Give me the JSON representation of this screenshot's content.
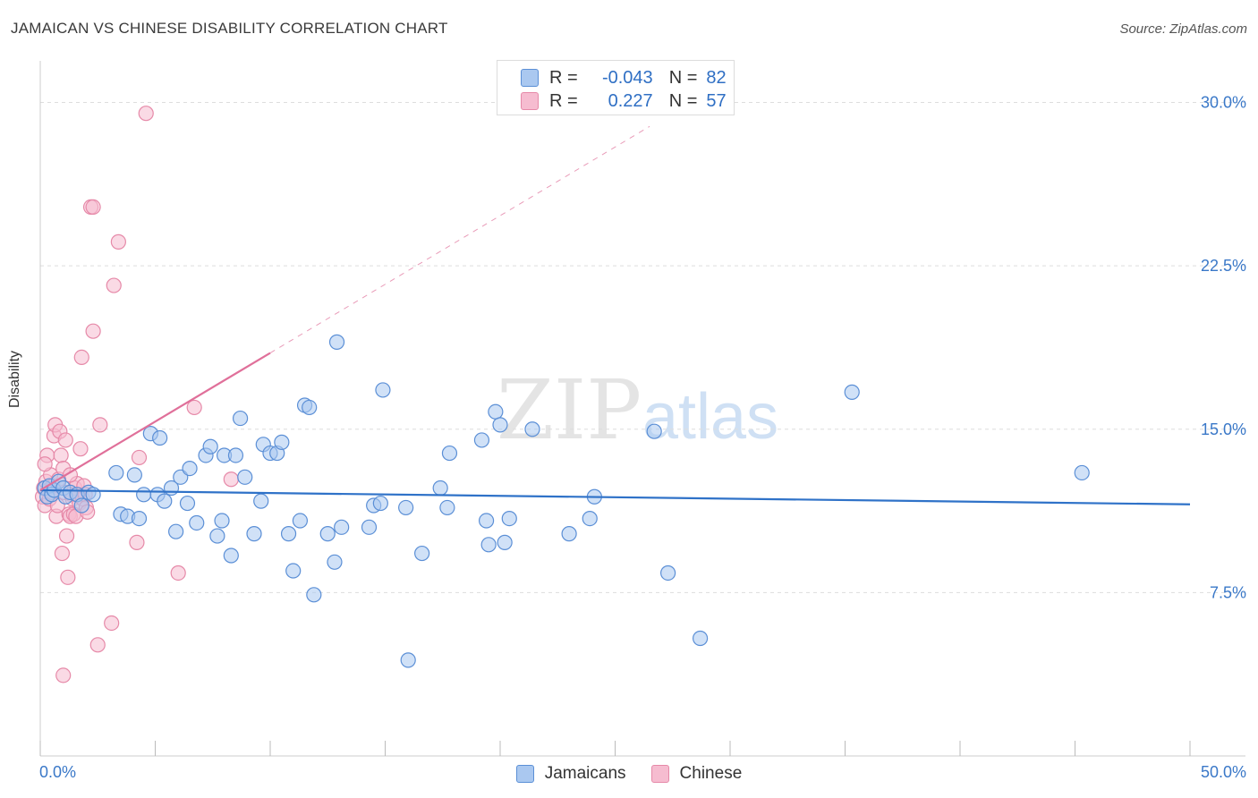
{
  "title": "JAMAICAN VS CHINESE DISABILITY CORRELATION CHART",
  "source": "Source: ZipAtlas.com",
  "watermark": {
    "zip": "ZIP",
    "atlas": "atlas"
  },
  "legend": {
    "rows": [
      {
        "r_label": "R =",
        "r_value": "-0.043",
        "n_label": "N =",
        "n_value": "82"
      },
      {
        "r_label": "R =",
        "r_value": "0.227",
        "n_label": "N =",
        "n_value": "57"
      }
    ]
  },
  "colors": {
    "blue_fill": "#aac8f0",
    "blue_stroke": "#5b8fd6",
    "blue_line": "#2f72c8",
    "pink_fill": "#f6bcd0",
    "pink_stroke": "#e689a8",
    "pink_line": "#e0709a",
    "tick_label": "#3a78c8",
    "grid": "#dddddd"
  },
  "chart_data": {
    "type": "scatter",
    "title": "JAMAICAN VS CHINESE DISABILITY CORRELATION CHART",
    "xlabel": "",
    "ylabel": "Disability",
    "xlim": [
      0,
      50
    ],
    "ylim": [
      0,
      31.5
    ],
    "x_tick_labels": [
      "0.0%",
      "50.0%"
    ],
    "y_ticks": [
      7.5,
      15.0,
      22.5,
      30.0
    ],
    "y_tick_labels": [
      "7.5%",
      "15.0%",
      "22.5%",
      "30.0%"
    ],
    "legend_placement": "bottom-center",
    "series": [
      {
        "name": "Jamaicans",
        "color": "#5b8fd6",
        "trend": {
          "x": [
            0,
            50
          ],
          "y": [
            12.2,
            11.55
          ],
          "style": "solid"
        },
        "points": [
          [
            0.2,
            12.3
          ],
          [
            0.3,
            11.9
          ],
          [
            0.4,
            12.4
          ],
          [
            0.5,
            12.0
          ],
          [
            0.6,
            12.2
          ],
          [
            0.8,
            12.6
          ],
          [
            1.0,
            12.3
          ],
          [
            1.1,
            11.9
          ],
          [
            1.3,
            12.1
          ],
          [
            1.6,
            12.0
          ],
          [
            1.8,
            11.5
          ],
          [
            2.1,
            12.1
          ],
          [
            2.3,
            12.0
          ],
          [
            3.3,
            13.0
          ],
          [
            3.5,
            11.1
          ],
          [
            3.8,
            11.0
          ],
          [
            4.1,
            12.9
          ],
          [
            4.3,
            10.9
          ],
          [
            4.5,
            12.0
          ],
          [
            4.8,
            14.8
          ],
          [
            5.1,
            12.0
          ],
          [
            5.2,
            14.6
          ],
          [
            5.4,
            11.7
          ],
          [
            5.7,
            12.3
          ],
          [
            5.9,
            10.3
          ],
          [
            6.1,
            12.8
          ],
          [
            6.4,
            11.6
          ],
          [
            6.5,
            13.2
          ],
          [
            6.8,
            10.7
          ],
          [
            7.2,
            13.8
          ],
          [
            7.4,
            14.2
          ],
          [
            7.7,
            10.1
          ],
          [
            7.9,
            10.8
          ],
          [
            8.0,
            13.8
          ],
          [
            8.3,
            9.2
          ],
          [
            8.5,
            13.8
          ],
          [
            8.7,
            15.5
          ],
          [
            8.9,
            12.8
          ],
          [
            9.3,
            10.2
          ],
          [
            9.6,
            11.7
          ],
          [
            9.7,
            14.3
          ],
          [
            10.0,
            13.9
          ],
          [
            10.3,
            13.9
          ],
          [
            10.5,
            14.4
          ],
          [
            10.8,
            10.2
          ],
          [
            11.0,
            8.5
          ],
          [
            11.3,
            10.8
          ],
          [
            11.5,
            16.1
          ],
          [
            11.7,
            16.0
          ],
          [
            11.9,
            7.4
          ],
          [
            12.5,
            10.2
          ],
          [
            12.8,
            8.9
          ],
          [
            12.9,
            19.0
          ],
          [
            13.1,
            10.5
          ],
          [
            14.3,
            10.5
          ],
          [
            14.5,
            11.5
          ],
          [
            14.8,
            11.6
          ],
          [
            14.9,
            16.8
          ],
          [
            15.9,
            11.4
          ],
          [
            16.0,
            4.4
          ],
          [
            16.6,
            9.3
          ],
          [
            17.4,
            12.3
          ],
          [
            17.7,
            11.4
          ],
          [
            17.8,
            13.9
          ],
          [
            19.2,
            14.5
          ],
          [
            19.4,
            10.8
          ],
          [
            19.5,
            9.7
          ],
          [
            19.8,
            15.8
          ],
          [
            20.0,
            15.2
          ],
          [
            20.2,
            9.8
          ],
          [
            20.4,
            10.9
          ],
          [
            21.4,
            15.0
          ],
          [
            23.0,
            10.2
          ],
          [
            23.9,
            10.9
          ],
          [
            24.1,
            11.9
          ],
          [
            26.7,
            14.9
          ],
          [
            27.3,
            8.4
          ],
          [
            28.7,
            5.4
          ],
          [
            35.3,
            16.7
          ],
          [
            45.3,
            13.0
          ]
        ]
      },
      {
        "name": "Chinese",
        "color": "#e689a8",
        "trend": {
          "x": [
            0,
            10
          ],
          "y": [
            12.2,
            18.5
          ],
          "style": "solid"
        },
        "trend_extension": {
          "x": [
            10,
            26.5
          ],
          "y": [
            18.5,
            28.9
          ],
          "style": "dashed"
        },
        "points": [
          [
            0.1,
            11.9
          ],
          [
            0.15,
            12.3
          ],
          [
            0.2,
            11.5
          ],
          [
            0.25,
            12.6
          ],
          [
            0.3,
            13.8
          ],
          [
            0.35,
            12.2
          ],
          [
            0.4,
            11.8
          ],
          [
            0.45,
            12.9
          ],
          [
            0.5,
            12.1
          ],
          [
            0.55,
            12.4
          ],
          [
            0.6,
            14.7
          ],
          [
            0.65,
            15.2
          ],
          [
            0.7,
            11.0
          ],
          [
            0.75,
            11.5
          ],
          [
            0.8,
            12.7
          ],
          [
            0.85,
            14.9
          ],
          [
            0.9,
            13.8
          ],
          [
            0.95,
            9.3
          ],
          [
            1.0,
            13.2
          ],
          [
            1.05,
            12.1
          ],
          [
            1.1,
            14.5
          ],
          [
            1.15,
            10.1
          ],
          [
            1.2,
            8.2
          ],
          [
            1.25,
            11.1
          ],
          [
            1.3,
            11.0
          ],
          [
            1.35,
            12.0
          ],
          [
            1.4,
            11.8
          ],
          [
            1.45,
            11.1
          ],
          [
            1.5,
            12.3
          ],
          [
            1.55,
            11.0
          ],
          [
            1.6,
            12.5
          ],
          [
            1.65,
            12.0
          ],
          [
            1.7,
            11.6
          ],
          [
            1.75,
            14.1
          ],
          [
            1.8,
            18.3
          ],
          [
            1.85,
            11.8
          ],
          [
            1.9,
            12.4
          ],
          [
            1.95,
            12.0
          ],
          [
            2.0,
            11.4
          ],
          [
            2.05,
            11.2
          ],
          [
            2.2,
            25.2
          ],
          [
            2.3,
            25.2
          ],
          [
            2.3,
            19.5
          ],
          [
            2.5,
            5.1
          ],
          [
            2.6,
            15.2
          ],
          [
            3.1,
            6.1
          ],
          [
            3.2,
            21.6
          ],
          [
            3.4,
            23.6
          ],
          [
            4.2,
            9.8
          ],
          [
            4.3,
            13.7
          ],
          [
            4.6,
            29.5
          ],
          [
            6.0,
            8.4
          ],
          [
            6.7,
            16.0
          ],
          [
            8.3,
            12.7
          ],
          [
            1.0,
            3.7
          ],
          [
            1.3,
            12.9
          ],
          [
            0.2,
            13.4
          ]
        ]
      }
    ]
  }
}
